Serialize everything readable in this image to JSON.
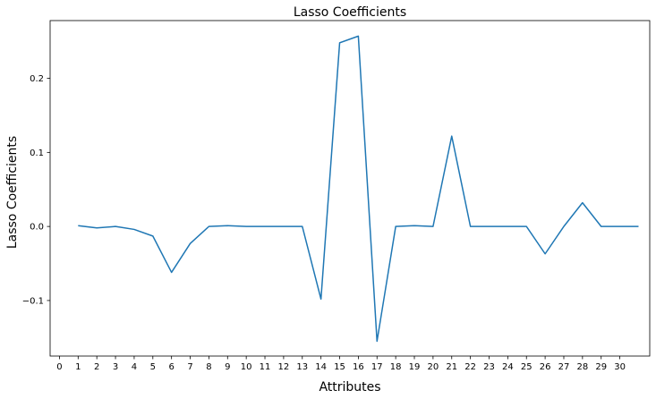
{
  "chart_data": {
    "type": "line",
    "title": "Lasso Coefficients",
    "xlabel": "Attributes",
    "ylabel": "Lasso Coefficients",
    "x_ticks": [
      0,
      1,
      2,
      3,
      4,
      5,
      6,
      7,
      8,
      9,
      10,
      11,
      12,
      13,
      14,
      15,
      16,
      17,
      18,
      19,
      20,
      21,
      22,
      23,
      24,
      25,
      26,
      27,
      28,
      29,
      30
    ],
    "y_ticks": [
      -0.1,
      0.0,
      0.1,
      0.2
    ],
    "y_tick_labels": [
      "−0.1",
      "0.0",
      "0.1",
      "0.2"
    ],
    "xlim": [
      -0.5,
      31.6
    ],
    "ylim": [
      -0.175,
      0.278
    ],
    "grid": false,
    "line_color": "#1f77b4",
    "series": [
      {
        "x": [
          1,
          2,
          3,
          4,
          5,
          6,
          7,
          8,
          9,
          10,
          11,
          12,
          13,
          14,
          15,
          16,
          17,
          18,
          19,
          20,
          21,
          22,
          23,
          24,
          25,
          26,
          27,
          28,
          29,
          30,
          31
        ],
        "values": [
          0.001,
          -0.002,
          0.0,
          -0.004,
          -0.013,
          -0.062,
          -0.023,
          0.0,
          0.001,
          0.0,
          0.0,
          0.0,
          0.0,
          -0.098,
          0.248,
          0.257,
          -0.155,
          0.0,
          0.001,
          0.0,
          0.122,
          0.0,
          0.0,
          0.0,
          0.0,
          -0.037,
          0.0,
          0.032,
          0.0,
          0.0,
          0.0
        ]
      }
    ]
  }
}
